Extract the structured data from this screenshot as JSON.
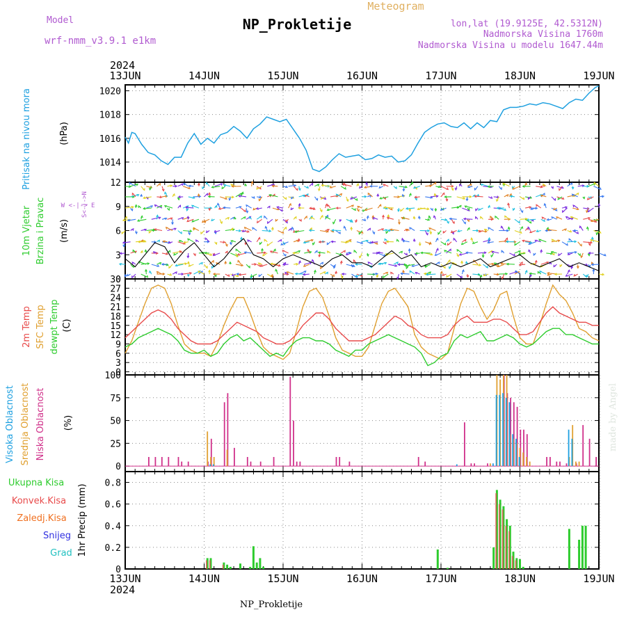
{
  "header": {
    "model_label": "Model",
    "model_name": "wrf-nmm_v3.9.1 e1km",
    "title": "NP_Prokletije",
    "product": "Meteogram",
    "lonlat": "lon,lat (19.9125E, 42.5312N)",
    "altitude": "Nadmorska Visina 1760m",
    "model_altitude": "Nadmorska Visina u modelu 1647.44m"
  },
  "footer": {
    "station": "NP_Prokletije",
    "credit": "made by Angel"
  },
  "time_axis": {
    "year": "2024",
    "days": [
      "13JUN",
      "14JUN",
      "15JUN",
      "16JUN",
      "17JUN",
      "18JUN",
      "19JUN"
    ]
  },
  "colors": {
    "pressure": "#1ea0e0",
    "t2m": "#e84a4a",
    "sfc": "#e0a030",
    "dewpt": "#2ecc2e",
    "high_cloud": "#1ea0e0",
    "mid_cloud": "#e0a030",
    "low_cloud": "#d0308a",
    "total_precip": "#2ecc2e",
    "conv_precip": "#e84a4a",
    "frz_precip": "#f07020",
    "snow": "#3030e0",
    "hail": "#20c0c0",
    "purple_label": "#b05ad0"
  },
  "panels": {
    "pressure": {
      "label_title": "Pritisak na nivou mora",
      "unit": "(hPa)",
      "ticks": [
        "1014",
        "1016",
        "1018",
        "1020"
      ]
    },
    "wind": {
      "label_title_1": "10m Vjetar",
      "label_title_2": "Brzina i Pravac",
      "unit": "(m/s)",
      "ticks": [
        "0",
        "3",
        "6",
        "9",
        "12"
      ],
      "compass": "W <-|-> E",
      "compass_ns": "S<-|->N"
    },
    "temp": {
      "label_1": "2m Temp",
      "label_2": "SFC Temp",
      "label_3": "dewpt Temp",
      "unit": "(C)",
      "ticks": [
        "0",
        "3",
        "6",
        "9",
        "12",
        "15",
        "18",
        "21",
        "24",
        "27",
        "30"
      ]
    },
    "cloud": {
      "label_1": "Visoka Oblacnost",
      "label_2": "Srednja Oblacnost",
      "label_3": "Niska Oblacnost",
      "unit": "(%)",
      "ticks": [
        "0",
        "25",
        "50",
        "75",
        "100"
      ]
    },
    "precip": {
      "label_1": "Ukupna Kisa",
      "label_2": "Konvek.Kisa",
      "label_3": "Zaledj.Kisa",
      "label_4": "Snijeg",
      "label_5": "Grad",
      "unit": "1hr Precip (mm)",
      "ticks": [
        "0",
        "0.2",
        "0.4",
        "0.6",
        "0.8"
      ]
    }
  },
  "chart_data": [
    {
      "type": "line",
      "panel": "pressure",
      "ylabel": "Pritisak na nivou mora (hPa)",
      "ylim": [
        1012.3,
        1020.5
      ],
      "x_unit": "hours from 13JUN 00",
      "x": [
        0,
        1,
        2,
        3,
        5,
        7,
        9,
        11,
        13,
        15,
        17,
        19,
        21,
        23,
        25,
        27,
        29,
        31,
        33,
        35,
        37,
        39,
        41,
        43,
        45,
        47,
        49,
        51,
        53,
        55,
        57,
        59,
        61,
        63,
        65,
        67,
        69,
        71,
        73,
        75,
        77,
        79,
        81,
        83,
        85,
        87,
        89,
        91,
        93,
        95,
        97,
        99,
        101,
        103,
        105,
        107,
        109,
        111,
        113,
        115,
        117,
        119,
        121,
        123,
        125,
        127,
        129,
        131,
        133,
        135,
        137,
        139,
        141,
        143,
        144
      ],
      "series": [
        {
          "values": [
            1016.1,
            1015.6,
            1016.5,
            1016.4,
            1015.5,
            1014.8,
            1014.6,
            1014.1,
            1013.8,
            1014.4,
            1014.4,
            1015.6,
            1016.4,
            1015.5,
            1016.0,
            1015.6,
            1016.3,
            1016.5,
            1017.0,
            1016.6,
            1016.0,
            1016.8,
            1017.2,
            1017.8,
            1017.6,
            1017.4,
            1017.6,
            1016.8,
            1016.0,
            1015.0,
            1013.4,
            1013.2,
            1013.6,
            1014.2,
            1014.7,
            1014.4,
            1014.5,
            1014.6,
            1014.2,
            1014.3,
            1014.6,
            1014.4,
            1014.5,
            1014.0,
            1014.1,
            1014.6,
            1015.6,
            1016.5,
            1016.9,
            1017.2,
            1017.3,
            1017.0,
            1016.9,
            1017.3,
            1016.8,
            1017.3,
            1016.9,
            1017.5,
            1017.4,
            1018.4,
            1018.6,
            1018.6,
            1018.7,
            1018.9,
            1018.8,
            1019.0,
            1018.9,
            1018.7,
            1018.5,
            1019.0,
            1019.3,
            1019.2,
            1019.8,
            1020.3,
            1020.4
          ]
        }
      ]
    },
    {
      "type": "line",
      "panel": "wind",
      "ylabel": "10m Vjetar Brzina i Pravac (m/s)",
      "ylim": [
        0,
        12
      ],
      "x_unit": "hours from 13JUN 00",
      "x": [
        0,
        3,
        6,
        9,
        12,
        15,
        18,
        21,
        24,
        27,
        30,
        33,
        36,
        39,
        42,
        45,
        48,
        51,
        54,
        57,
        60,
        63,
        66,
        69,
        72,
        75,
        78,
        81,
        84,
        87,
        90,
        93,
        96,
        99,
        102,
        105,
        108,
        111,
        114,
        117,
        120,
        123,
        126,
        129,
        132,
        135,
        138,
        141,
        144
      ],
      "series": [
        {
          "name": "wind speed",
          "values": [
            2.5,
            1.5,
            3.0,
            4.5,
            4.0,
            2.0,
            3.5,
            4.5,
            3.0,
            1.5,
            2.5,
            4.0,
            5.0,
            3.0,
            2.5,
            1.5,
            2.5,
            3.0,
            2.5,
            2.0,
            1.5,
            2.5,
            3.0,
            2.0,
            2.0,
            1.5,
            2.5,
            3.5,
            2.5,
            3.0,
            1.5,
            2.0,
            1.5,
            2.0,
            1.5,
            2.0,
            2.5,
            1.5,
            2.0,
            2.5,
            3.0,
            2.0,
            1.5,
            2.0,
            2.5,
            1.5,
            2.0,
            1.5,
            1.0
          ]
        }
      ]
    },
    {
      "type": "line",
      "panel": "temp",
      "ylabel": "Temp (C)",
      "ylim": [
        -1,
        30
      ],
      "x_unit": "hours from 13JUN 00",
      "x": [
        0,
        2,
        4,
        6,
        8,
        10,
        12,
        14,
        16,
        18,
        20,
        22,
        24,
        26,
        28,
        30,
        32,
        34,
        36,
        38,
        40,
        42,
        44,
        46,
        48,
        50,
        52,
        54,
        56,
        58,
        60,
        62,
        64,
        66,
        68,
        70,
        72,
        74,
        76,
        78,
        80,
        82,
        84,
        86,
        88,
        90,
        92,
        94,
        96,
        98,
        100,
        102,
        104,
        106,
        108,
        110,
        112,
        114,
        116,
        118,
        120,
        122,
        124,
        126,
        128,
        130,
        132,
        134,
        136,
        138,
        140,
        142,
        144
      ],
      "series": [
        {
          "name": "2m Temp",
          "values": [
            11,
            13,
            15,
            17,
            19,
            20,
            19,
            17,
            14,
            12,
            10,
            9,
            9,
            9,
            10,
            12,
            14,
            16,
            15,
            14,
            13,
            11,
            10,
            9,
            9,
            10,
            12,
            15,
            17,
            19,
            19,
            17,
            14,
            12,
            10,
            10,
            10,
            11,
            12,
            14,
            16,
            18,
            17,
            15,
            14,
            12,
            11,
            11,
            11,
            12,
            15,
            17,
            18,
            16,
            16,
            16,
            17,
            17,
            16,
            14,
            12,
            12,
            13,
            16,
            19,
            21,
            19,
            18,
            17,
            16,
            16,
            15,
            15
          ]
        },
        {
          "name": "SFC Temp",
          "values": [
            6,
            10,
            16,
            22,
            27,
            28,
            27,
            22,
            15,
            9,
            7,
            6,
            6,
            5,
            9,
            15,
            20,
            24,
            24,
            19,
            13,
            8,
            6,
            5,
            4,
            6,
            13,
            21,
            26,
            27,
            24,
            18,
            11,
            7,
            6,
            5,
            5,
            8,
            15,
            22,
            26,
            27,
            24,
            21,
            12,
            8,
            6,
            5,
            4,
            6,
            14,
            22,
            27,
            26,
            21,
            17,
            20,
            25,
            26,
            18,
            11,
            9,
            9,
            15,
            22,
            28,
            25,
            23,
            19,
            14,
            13,
            11,
            10
          ]
        },
        {
          "name": "dewpt Temp",
          "values": [
            8,
            9,
            11,
            12,
            13,
            14,
            13,
            12,
            10,
            7,
            6,
            6,
            7,
            5,
            6,
            9,
            11,
            12,
            10,
            11,
            9,
            7,
            5,
            6,
            5,
            8,
            10,
            11,
            11,
            10,
            10,
            9,
            7,
            6,
            5,
            7,
            7,
            9,
            10,
            11,
            12,
            11,
            10,
            9,
            8,
            6,
            2,
            3,
            5,
            6,
            10,
            12,
            11,
            12,
            13,
            10,
            10,
            11,
            12,
            11,
            9,
            8,
            9,
            11,
            13,
            14,
            14,
            12,
            12,
            11,
            10,
            9,
            9
          ]
        }
      ]
    },
    {
      "type": "bar",
      "panel": "cloud",
      "ylabel": "Oblacnost (%)",
      "ylim": [
        0,
        100
      ],
      "x_unit": "hours from 13JUN 00",
      "series": [
        {
          "name": "Niska Oblacnost",
          "x": [
            7,
            9,
            11,
            13,
            16,
            17,
            19,
            25,
            26,
            30,
            31,
            33,
            37,
            38,
            41,
            45,
            50,
            51,
            52,
            53,
            64,
            65,
            68,
            89,
            91,
            103,
            105,
            106,
            110,
            115,
            116,
            117,
            118,
            119,
            120,
            121,
            122,
            128,
            129,
            131,
            132,
            134,
            137,
            139,
            141,
            143
          ],
          "values": [
            10,
            10,
            10,
            10,
            10,
            5,
            5,
            5,
            30,
            70,
            80,
            20,
            10,
            5,
            5,
            10,
            98,
            50,
            5,
            5,
            10,
            10,
            5,
            10,
            5,
            48,
            3,
            3,
            3,
            100,
            80,
            75,
            70,
            65,
            40,
            40,
            35,
            10,
            10,
            5,
            5,
            3,
            3,
            45,
            30,
            10
          ]
        },
        {
          "name": "Srednja Oblacnost",
          "x": [
            25,
            26,
            27,
            31,
            111,
            113,
            114,
            115,
            116,
            117,
            118,
            119,
            120,
            121,
            122,
            123,
            135,
            136,
            137,
            138
          ],
          "values": [
            38,
            10,
            10,
            18,
            3,
            100,
            95,
            100,
            100,
            35,
            30,
            25,
            20,
            15,
            10,
            5,
            10,
            45,
            5,
            5
          ]
        },
        {
          "name": "Visoka Oblacnost",
          "x": [
            26,
            27,
            101,
            112,
            113,
            114,
            115,
            116,
            117,
            118,
            119,
            120,
            135,
            136
          ],
          "values": [
            2,
            2,
            2,
            3,
            78,
            78,
            80,
            75,
            70,
            35,
            30,
            10,
            40,
            30
          ]
        }
      ]
    },
    {
      "type": "bar",
      "panel": "precip",
      "ylabel": "1hr Precip (mm)",
      "ylim": [
        0,
        0.9
      ],
      "x_unit": "hours from 13JUN 00",
      "series": [
        {
          "name": "Ukupna Kisa",
          "x": [
            25,
            26,
            30,
            31,
            32,
            35,
            38,
            39,
            40,
            41,
            42,
            95,
            98,
            112,
            113,
            114,
            115,
            116,
            117,
            118,
            119,
            120,
            121,
            135,
            138,
            139,
            140
          ],
          "values": [
            0.1,
            0.1,
            0.06,
            0.04,
            0.02,
            0.05,
            0.02,
            0.21,
            0.06,
            0.1,
            0.02,
            0.18,
            0.01,
            0.2,
            0.73,
            0.64,
            0.58,
            0.46,
            0.4,
            0.16,
            0.1,
            0.09,
            0.02,
            0.37,
            0.27,
            0.4,
            0.4
          ]
        },
        {
          "name": "Konvek.Kisa",
          "x": [
            25,
            26,
            30,
            113,
            114,
            115,
            116,
            117,
            118,
            119
          ],
          "values": [
            0.08,
            0.08,
            0.04,
            0.7,
            0.6,
            0.55,
            0.4,
            0.35,
            0.12,
            0.08
          ]
        }
      ]
    }
  ]
}
